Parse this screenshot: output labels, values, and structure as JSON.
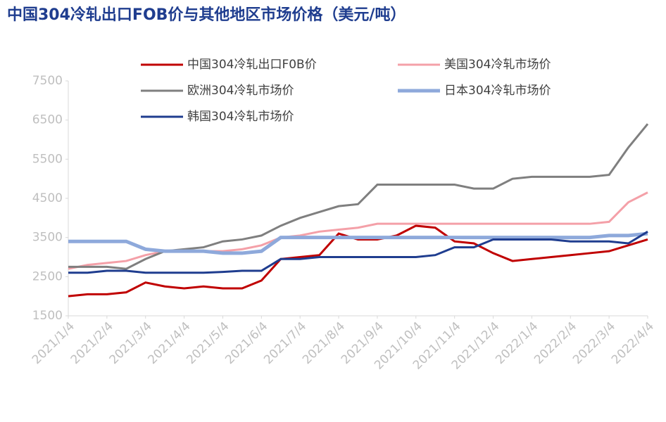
{
  "chart_data": {
    "type": "line",
    "title": "中国304冷轧出口FOB价与其他地区市场价格（美元/吨）",
    "categories": [
      "2021/1/4",
      null,
      "2021/2/4",
      null,
      "2021/3/4",
      null,
      "2021/4/4",
      null,
      "2021/5/4",
      null,
      "2021/6/4",
      null,
      "2021/7/4",
      null,
      "2021/8/4",
      null,
      "2021/9/4",
      null,
      "2021/10/4",
      null,
      "2021/11/4",
      null,
      "2021/12/4",
      null,
      "2022/1/4",
      null,
      "2022/2/4",
      null,
      "2022/3/4",
      null,
      "2022/4/4"
    ],
    "series": [
      {
        "name": "中国304冷轧出口F0B价",
        "color": "#c00000",
        "values": [
          2000,
          2050,
          2050,
          2100,
          2350,
          2250,
          2200,
          2250,
          2200,
          2200,
          2400,
          2950,
          3000,
          3050,
          3600,
          3450,
          3450,
          3550,
          3800,
          3750,
          3400,
          3350,
          3100,
          2900,
          2950,
          3000,
          3050,
          3100,
          3150,
          3300,
          3450
        ]
      },
      {
        "name": "美国304冷轧市场价",
        "color": "#f4a0a8",
        "values": [
          2700,
          2800,
          2850,
          2900,
          3050,
          3150,
          3150,
          3150,
          3150,
          3200,
          3300,
          3500,
          3550,
          3650,
          3700,
          3750,
          3850,
          3850,
          3850,
          3850,
          3850,
          3850,
          3850,
          3850,
          3850,
          3850,
          3850,
          3850,
          3900,
          4400,
          4650
        ]
      },
      {
        "name": "欧洲304冷轧市场价",
        "color": "#7f7f7f",
        "values": [
          2750,
          2750,
          2750,
          2700,
          2950,
          3150,
          3200,
          3250,
          3400,
          3450,
          3550,
          3800,
          4000,
          4150,
          4300,
          4350,
          4850,
          4850,
          4850,
          4850,
          4850,
          4750,
          4750,
          5000,
          5050,
          5050,
          5050,
          5050,
          5100,
          5800,
          6400
        ]
      },
      {
        "name": "日本304冷轧市场价",
        "color": "#8ea9db",
        "values": [
          3400,
          3400,
          3400,
          3400,
          3200,
          3150,
          3150,
          3150,
          3100,
          3100,
          3150,
          3500,
          3500,
          3500,
          3500,
          3500,
          3500,
          3500,
          3500,
          3500,
          3500,
          3500,
          3500,
          3500,
          3500,
          3500,
          3500,
          3500,
          3550,
          3550,
          3600
        ]
      },
      {
        "name": "韩国304冷轧市场价",
        "color": "#1f3d8f",
        "values": [
          2600,
          2600,
          2650,
          2650,
          2600,
          2600,
          2600,
          2600,
          2620,
          2650,
          2650,
          2950,
          2950,
          3000,
          3000,
          3000,
          3000,
          3000,
          3000,
          3050,
          3250,
          3250,
          3450,
          3450,
          3450,
          3450,
          3400,
          3400,
          3400,
          3350,
          3650
        ]
      }
    ],
    "ylim": [
      1500,
      7500
    ],
    "yticks": [
      1500,
      2500,
      3500,
      4500,
      5500,
      6500,
      7500
    ],
    "grid": false
  }
}
